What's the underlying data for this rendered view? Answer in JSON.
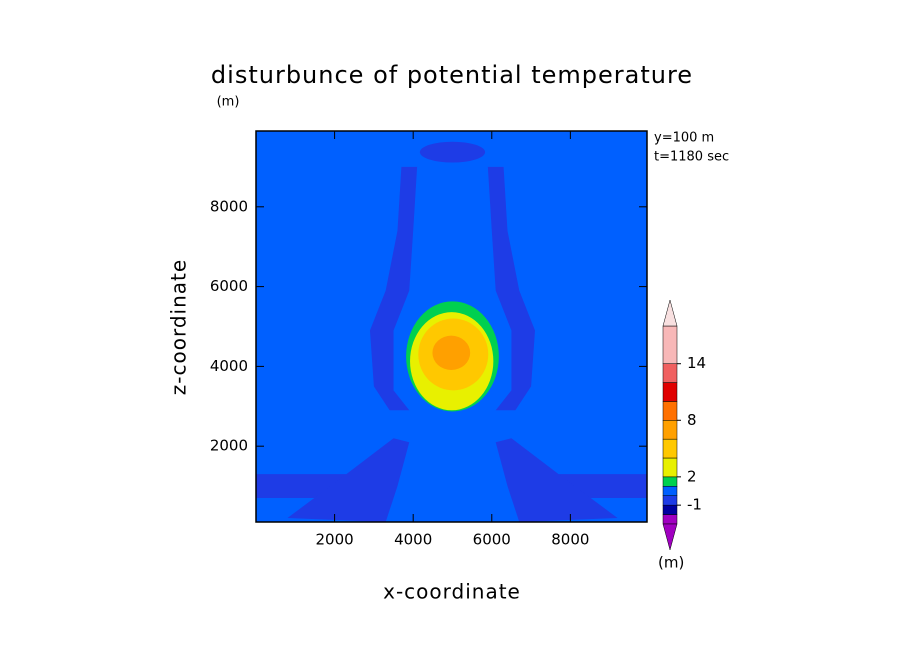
{
  "chart_data": {
    "type": "contour",
    "title": "disturbunce of potential temperature",
    "unit_label": "(m)",
    "x_label": "x-coordinate",
    "y_label": "z-coordinate",
    "annotations": [
      "y=100 m",
      "t=1180 sec"
    ],
    "xlim": [
      0,
      9950
    ],
    "ylim": [
      100,
      9900
    ],
    "xticks": [
      2000,
      4000,
      6000,
      8000
    ],
    "yticks": [
      2000,
      4000,
      6000,
      8000
    ],
    "background_level": 0,
    "colorbar": {
      "levels": [
        -3,
        -2,
        -1,
        0,
        1,
        2,
        4,
        6,
        8,
        10,
        12,
        14,
        18
      ],
      "colors": [
        "#a000c0",
        "#0000a0",
        "#1e3ce6",
        "#0060ff",
        "#00d050",
        "#e8f000",
        "#ffc800",
        "#ffa000",
        "#ff7000",
        "#e00000",
        "#f06060",
        "#f8b8b8"
      ],
      "under_color": "#a000c0",
      "over_color": "#f8e0e0",
      "ticks": [
        -1,
        2,
        8,
        14
      ],
      "unit_label": "(m)"
    },
    "polygons": [
      {
        "level": -1,
        "x": [
          0,
          2300,
          2300,
          0
        ],
        "y": [
          1300,
          1300,
          700,
          700
        ]
      },
      {
        "level": -1,
        "x": [
          7700,
          9950,
          9950,
          7700
        ],
        "y": [
          1300,
          1300,
          700,
          700
        ]
      },
      {
        "level": -1,
        "x": [
          800,
          2300,
          3500,
          3900,
          3600,
          3300
        ],
        "y": [
          200,
          1300,
          2200,
          2100,
          1000,
          100
        ]
      },
      {
        "level": -1,
        "x": [
          9200,
          7700,
          6500,
          6100,
          6400,
          6700
        ],
        "y": [
          200,
          1300,
          2200,
          2100,
          1000,
          100
        ]
      },
      {
        "level": -1,
        "x": [
          3700,
          4100,
          4000,
          3900,
          3500,
          3500,
          3900,
          3400,
          3000,
          2900,
          3300,
          3600
        ],
        "y": [
          9000,
          9000,
          7400,
          5900,
          4900,
          3400,
          2900,
          2900,
          3500,
          4900,
          5900,
          7400
        ]
      },
      {
        "level": -1,
        "x": [
          6300,
          5900,
          6000,
          6100,
          6500,
          6500,
          6100,
          6600,
          7000,
          7100,
          6700,
          6400
        ],
        "y": [
          9000,
          9000,
          7400,
          5900,
          4900,
          3400,
          2900,
          2900,
          3500,
          4900,
          5900,
          7400
        ]
      }
    ],
    "ellipses": [
      {
        "level": -1,
        "cx": 5000,
        "cy": 9370,
        "rx": 830,
        "ry": 260
      },
      {
        "level": 1,
        "cx": 5000,
        "cy": 4250,
        "rx": 1180,
        "ry": 1380
      },
      {
        "level": 2,
        "cx": 4980,
        "cy": 4130,
        "rx": 1060,
        "ry": 1230
      },
      {
        "level": 4,
        "cx": 5020,
        "cy": 4300,
        "rx": 890,
        "ry": 900
      },
      {
        "level": 6,
        "cx": 4970,
        "cy": 4340,
        "rx": 480,
        "ry": 430
      }
    ]
  }
}
